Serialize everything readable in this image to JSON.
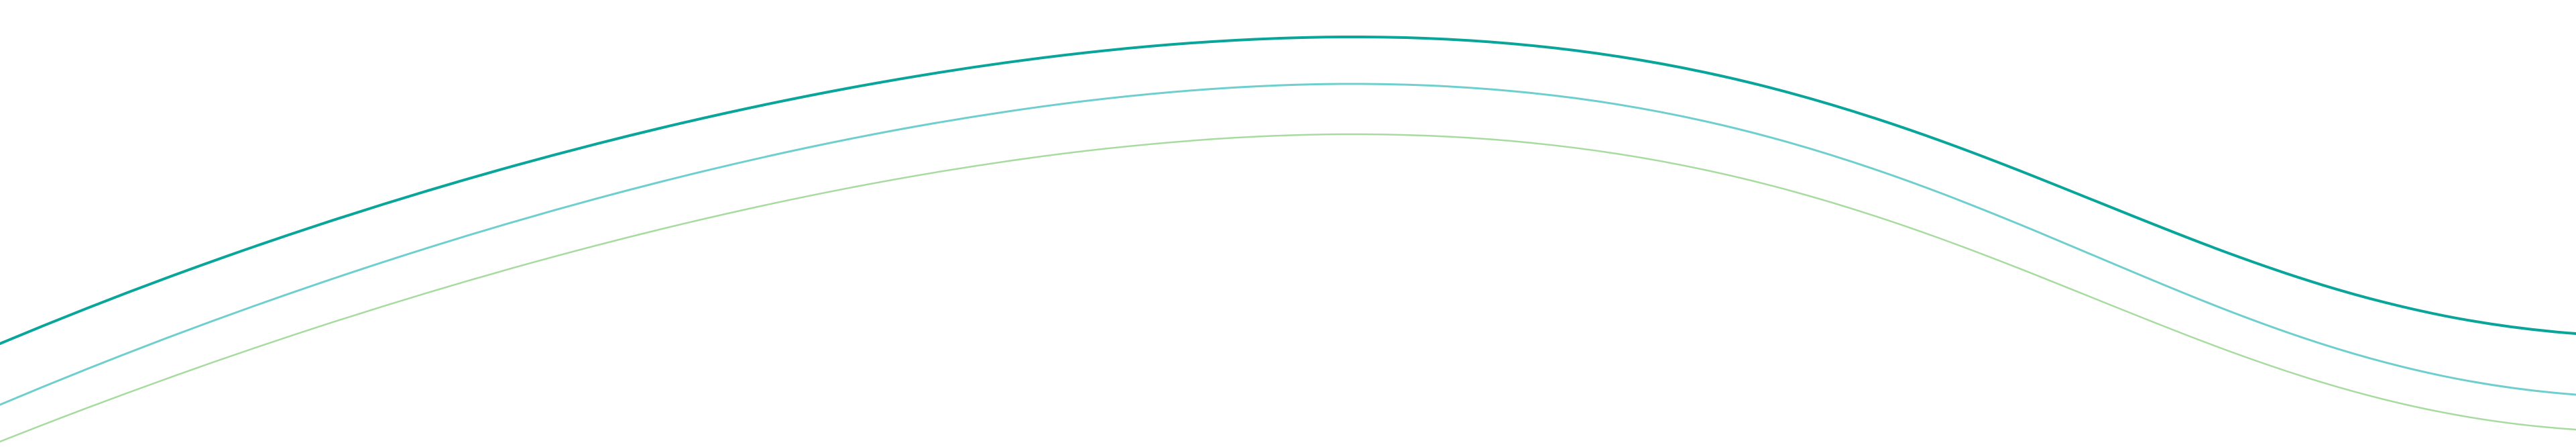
{
  "decoration": {
    "waves": [
      {
        "name": "wave-top",
        "color": "#0aa59a"
      },
      {
        "name": "wave-middle",
        "color": "#6fcfcf"
      },
      {
        "name": "wave-bottom",
        "color": "#a8dba0"
      }
    ]
  }
}
